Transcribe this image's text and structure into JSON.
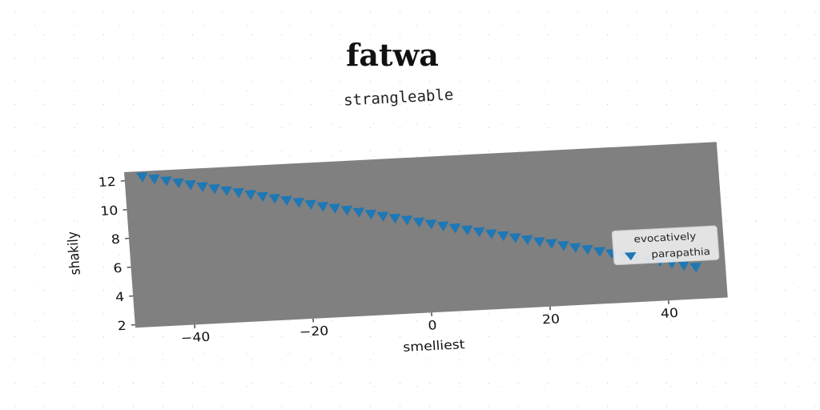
{
  "chart_data": {
    "type": "scatter",
    "title": "fatwa",
    "subtitle": "strangleable",
    "xlabel": "smelliest",
    "ylabel": "shakily",
    "xlim": [
      -50,
      50
    ],
    "ylim": [
      1.8,
      12.6
    ],
    "x_ticks": [
      -40,
      -20,
      0,
      20,
      40
    ],
    "y_ticks": [
      2,
      4,
      6,
      8,
      10,
      12
    ],
    "x_tick_labels": [
      "−40",
      "−20",
      "0",
      "20",
      "40"
    ],
    "y_tick_labels": [
      "2",
      "4",
      "6",
      "8",
      "10",
      "12"
    ],
    "grid": false,
    "legend": {
      "title": "evocatively",
      "placement": "center-right"
    },
    "series": [
      {
        "name": "parapathia",
        "marker": "triangle-down",
        "color": "#1f77b4",
        "x": [
          -47.0,
          -45.0,
          -43.0,
          -41.0,
          -39.0,
          -37.0,
          -35.0,
          -33.0,
          -31.0,
          -29.0,
          -27.0,
          -25.0,
          -23.0,
          -21.0,
          -19.0,
          -17.0,
          -15.0,
          -13.0,
          -11.0,
          -9.0,
          -7.0,
          -5.0,
          -3.0,
          -1.0,
          1.0,
          3.0,
          5.0,
          7.0,
          9.0,
          11.0,
          13.0,
          15.0,
          17.0,
          19.0,
          21.0,
          23.0,
          25.0,
          27.0,
          29.0,
          31.0,
          33.0,
          35.0,
          37.0,
          39.0,
          41.0,
          43.0,
          45.0
        ],
        "y": [
          12.2,
          12.02,
          11.84,
          11.66,
          11.49,
          11.31,
          11.13,
          10.95,
          10.77,
          10.59,
          10.42,
          10.24,
          10.06,
          9.88,
          9.7,
          9.52,
          9.35,
          9.17,
          8.99,
          8.81,
          8.63,
          8.45,
          8.28,
          8.1,
          7.92,
          7.74,
          7.56,
          7.38,
          7.21,
          7.03,
          6.85,
          6.67,
          6.49,
          6.31,
          6.14,
          5.96,
          5.78,
          5.6,
          5.42,
          5.24,
          5.07,
          4.89,
          4.71,
          4.53,
          4.35,
          4.17,
          4.0
        ]
      }
    ]
  },
  "colors": {
    "plot_background": "#808080",
    "marker": "#1f77b4"
  }
}
